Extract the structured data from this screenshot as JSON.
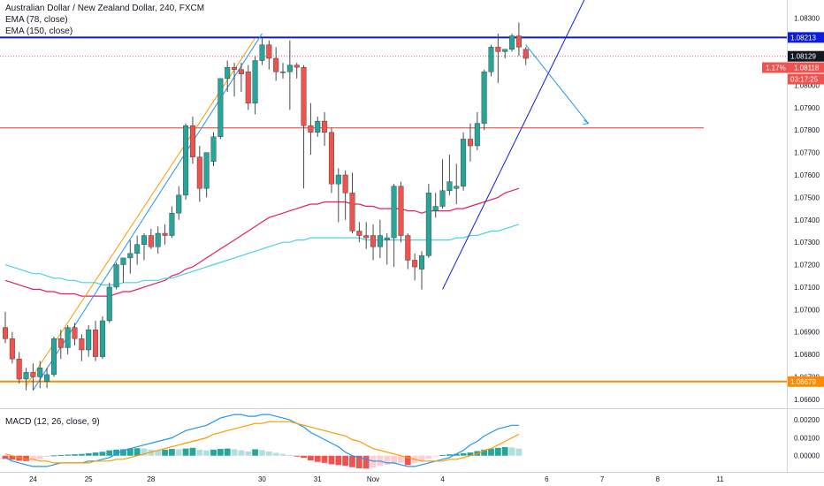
{
  "legend": {
    "title": "Australian Dollar / New Zealand Dollar, 240, FXCM",
    "ema1": "EMA (78, close)",
    "ema2": "EMA (150, close)",
    "macd": "MACD (12, 26, close, 9)"
  },
  "tags": {
    "resistance": "1.08213",
    "last_close": "1.08129",
    "change": "1.17%",
    "price": "1.08118",
    "countdown": "03:17:25",
    "support": "1.06679"
  },
  "colors": {
    "up": "#26a69a",
    "down": "#ef5350",
    "ema78": "#e91e63",
    "ema150": "#4dd0e1",
    "blue_level": "#0d1ddb",
    "orange_level": "#ff8c00",
    "red_level": "#e53935",
    "macd_line": "#2196f3",
    "signal_line": "#ff9800"
  },
  "chart_data": {
    "type": "candlestick",
    "symbol": "AUDNZD",
    "timeframe": "240",
    "y_ticks": [
      1.066,
      1.067,
      1.068,
      1.069,
      1.07,
      1.071,
      1.072,
      1.073,
      1.074,
      1.075,
      1.076,
      1.077,
      1.078,
      1.079,
      1.08,
      1.083
    ],
    "ylim": [
      1.0656,
      1.0838
    ],
    "x_ticks": [
      {
        "label": "24",
        "bar": 4
      },
      {
        "label": "25",
        "bar": 12
      },
      {
        "label": "28",
        "bar": 21
      },
      {
        "label": "30",
        "bar": 37
      },
      {
        "label": "31",
        "bar": 45
      },
      {
        "label": "Nov",
        "bar": 53
      },
      {
        "label": "4",
        "bar": 63
      },
      {
        "label": "6",
        "bar": 78
      },
      {
        "label": "7",
        "bar": 86
      },
      {
        "label": "8",
        "bar": 94
      },
      {
        "label": "11",
        "bar": 103
      }
    ],
    "candles": [
      [
        1.0692,
        1.0699,
        1.0685,
        1.0687
      ],
      [
        1.0687,
        1.069,
        1.0676,
        1.0678
      ],
      [
        1.0678,
        1.0681,
        1.0667,
        1.0669
      ],
      [
        1.0669,
        1.0674,
        1.0664,
        1.0672
      ],
      [
        1.0672,
        1.0676,
        1.0664,
        1.067
      ],
      [
        1.067,
        1.0677,
        1.0665,
        1.0674
      ],
      [
        1.0668,
        1.0674,
        1.0665,
        1.0671
      ],
      [
        1.0671,
        1.0688,
        1.067,
        1.0687
      ],
      [
        1.0687,
        1.0691,
        1.0678,
        1.0683
      ],
      [
        1.0683,
        1.0693,
        1.068,
        1.0692
      ],
      [
        1.0692,
        1.0694,
        1.0684,
        1.0687
      ],
      [
        1.0687,
        1.0689,
        1.0677,
        1.0682
      ],
      [
        1.0682,
        1.0693,
        1.0679,
        1.0691
      ],
      [
        1.0691,
        1.0695,
        1.0677,
        1.0679
      ],
      [
        1.0679,
        1.0697,
        1.0678,
        1.0695
      ],
      [
        1.0695,
        1.0712,
        1.0694,
        1.071
      ],
      [
        1.071,
        1.0721,
        1.0709,
        1.072
      ],
      [
        1.072,
        1.0723,
        1.0712,
        1.0723
      ],
      [
        1.0723,
        1.0731,
        1.0716,
        1.0725
      ],
      [
        1.0725,
        1.0733,
        1.072,
        1.0729
      ],
      [
        1.0729,
        1.0734,
        1.0722,
        1.0733
      ],
      [
        1.0733,
        1.0736,
        1.0727,
        1.0728
      ],
      [
        1.0728,
        1.0737,
        1.0725,
        1.0734
      ],
      [
        1.0734,
        1.0738,
        1.0729,
        1.0733
      ],
      [
        1.0733,
        1.0746,
        1.0732,
        1.0743
      ],
      [
        1.0743,
        1.0755,
        1.074,
        1.0751
      ],
      [
        1.0751,
        1.0783,
        1.0749,
        1.0782
      ],
      [
        1.0782,
        1.0786,
        1.0765,
        1.0768
      ],
      [
        1.0768,
        1.0773,
        1.0748,
        1.0754
      ],
      [
        1.0754,
        1.077,
        1.075,
        1.077
      ],
      [
        1.0766,
        1.0779,
        1.0764,
        1.0777
      ],
      [
        1.0777,
        1.0802,
        1.0776,
        1.0803
      ],
      [
        1.0803,
        1.0811,
        1.0797,
        1.0808
      ],
      [
        1.0808,
        1.081,
        1.0795,
        1.0807
      ],
      [
        1.0807,
        1.081,
        1.0797,
        1.0805
      ],
      [
        1.0806,
        1.0809,
        1.0789,
        1.0792
      ],
      [
        1.0792,
        1.0813,
        1.0787,
        1.0811
      ],
      [
        1.0811,
        1.0821,
        1.0809,
        1.0818
      ],
      [
        1.0818,
        1.082,
        1.0807,
        1.0812
      ],
      [
        1.0812,
        1.0817,
        1.0802,
        1.0806
      ],
      [
        1.0806,
        1.081,
        1.0803,
        1.0806
      ],
      [
        1.0806,
        1.082,
        1.0789,
        1.0809
      ],
      [
        1.0809,
        1.081,
        1.0803,
        1.0808
      ],
      [
        1.0808,
        1.0809,
        1.0754,
        1.0782
      ],
      [
        1.0782,
        1.0792,
        1.0769,
        1.0779
      ],
      [
        1.0779,
        1.0786,
        1.0777,
        1.0784
      ],
      [
        1.0784,
        1.0788,
        1.0773,
        1.0779
      ],
      [
        1.0779,
        1.0781,
        1.0752,
        1.0756
      ],
      [
        1.0756,
        1.0763,
        1.0739,
        1.076
      ],
      [
        1.076,
        1.0762,
        1.074,
        1.0752
      ],
      [
        1.0752,
        1.0761,
        1.0734,
        1.0735
      ],
      [
        1.0735,
        1.0739,
        1.073,
        1.0733
      ],
      [
        1.0733,
        1.0739,
        1.0727,
        1.0732
      ],
      [
        1.0733,
        1.0738,
        1.0722,
        1.0728
      ],
      [
        1.0728,
        1.074,
        1.0723,
        1.0733
      ],
      [
        1.0731,
        1.0734,
        1.072,
        1.0732
      ],
      [
        1.0732,
        1.0756,
        1.0719,
        1.0755
      ],
      [
        1.0755,
        1.0757,
        1.073,
        1.0733
      ],
      [
        1.0733,
        1.0734,
        1.0718,
        1.0722
      ],
      [
        1.0722,
        1.0725,
        1.0713,
        1.0719
      ],
      [
        1.0718,
        1.0726,
        1.0709,
        1.0724
      ],
      [
        1.0724,
        1.0756,
        1.0723,
        1.0752
      ],
      [
        1.0744,
        1.0752,
        1.0741,
        1.0746
      ],
      [
        1.0746,
        1.0767,
        1.0745,
        1.0753
      ],
      [
        1.0753,
        1.0769,
        1.0751,
        1.0757
      ],
      [
        1.0754,
        1.0765,
        1.0747,
        1.0755
      ],
      [
        1.0755,
        1.0779,
        1.0753,
        1.0776
      ],
      [
        1.0776,
        1.0783,
        1.0766,
        1.0773
      ],
      [
        1.0773,
        1.0788,
        1.0771,
        1.0783
      ],
      [
        1.0783,
        1.0807,
        1.078,
        1.0806
      ],
      [
        1.0806,
        1.0818,
        1.0804,
        1.0817
      ],
      [
        1.0817,
        1.0823,
        1.0801,
        1.0815
      ],
      [
        1.0815,
        1.0816,
        1.0812,
        1.0816
      ],
      [
        1.0816,
        1.0823,
        1.0815,
        1.0822
      ],
      [
        1.0822,
        1.0828,
        1.0813,
        1.0817
      ],
      [
        1.0816,
        1.0817,
        1.0809,
        1.0812
      ]
    ],
    "ema78": [
      1.0713,
      1.0712,
      1.0711,
      1.071,
      1.0709,
      1.0709,
      1.0708,
      1.0708,
      1.0707,
      1.0707,
      1.0707,
      1.0706,
      1.0706,
      1.0706,
      1.0706,
      1.0706,
      1.0707,
      1.0708,
      1.0708,
      1.0709,
      1.071,
      1.0711,
      1.0712,
      1.0713,
      1.0715,
      1.0716,
      1.0718,
      1.0719,
      1.0721,
      1.0723,
      1.0725,
      1.0727,
      1.0729,
      1.0731,
      1.0733,
      1.0735,
      1.0737,
      1.0739,
      1.0741,
      1.0742,
      1.0743,
      1.0744,
      1.0745,
      1.0746,
      1.0747,
      1.0747,
      1.0748,
      1.0748,
      1.0748,
      1.0748,
      1.0747,
      1.0747,
      1.0746,
      1.0746,
      1.0745,
      1.0745,
      1.0745,
      1.0745,
      1.0744,
      1.0744,
      1.0743,
      1.0744,
      1.0744,
      1.0744,
      1.0744,
      1.0745,
      1.0745,
      1.0746,
      1.0747,
      1.0748,
      1.0749,
      1.075,
      1.0752,
      1.0753,
      1.0754
    ],
    "ema150": [
      1.072,
      1.0719,
      1.0718,
      1.0717,
      1.0716,
      1.0716,
      1.0715,
      1.0714,
      1.0714,
      1.0713,
      1.0713,
      1.0712,
      1.0712,
      1.0712,
      1.0711,
      1.0711,
      1.0711,
      1.0712,
      1.0712,
      1.0712,
      1.0713,
      1.0713,
      1.0713,
      1.0714,
      1.0714,
      1.0715,
      1.0716,
      1.0717,
      1.0718,
      1.0719,
      1.072,
      1.0721,
      1.0722,
      1.0723,
      1.0724,
      1.0725,
      1.0726,
      1.0727,
      1.0728,
      1.0729,
      1.073,
      1.073,
      1.0731,
      1.0731,
      1.0732,
      1.0732,
      1.0732,
      1.0732,
      1.0732,
      1.0732,
      1.0732,
      1.0732,
      1.0731,
      1.0731,
      1.0731,
      1.0731,
      1.0731,
      1.0731,
      1.0731,
      1.0731,
      1.0731,
      1.0731,
      1.0731,
      1.0731,
      1.0731,
      1.0732,
      1.0732,
      1.0733,
      1.0733,
      1.0734,
      1.0735,
      1.0735,
      1.0736,
      1.0737,
      1.0738
    ],
    "levels": [
      {
        "name": "resistance",
        "price": 1.08213
      },
      {
        "name": "support",
        "price": 1.06679
      },
      {
        "name": "target",
        "price": 1.0781
      },
      {
        "name": "last_close",
        "price": 1.08129
      }
    ],
    "trendlines": [
      {
        "from": [
          3,
          1.0666
        ],
        "to": [
          36,
          1.0821
        ]
      },
      {
        "from": [
          4,
          1.0664
        ],
        "to": [
          37,
          1.0823
        ]
      },
      {
        "from": [
          63,
          1.0709
        ],
        "to": [
          85,
          1.0848
        ]
      }
    ],
    "projection": {
      "from": [
        75,
        1.0818
      ],
      "to": [
        84,
        1.0783
      ]
    },
    "macd": {
      "y_ticks": [
        0.0,
        0.001,
        0.002
      ],
      "ylim": [
        -0.0009,
        0.0026
      ],
      "histogram": [
        -0.00018,
        -0.00022,
        -0.00028,
        -0.0003,
        -0.00024,
        -0.00018,
        -6e-05,
        2e-05,
        4e-05,
        6e-05,
        8e-05,
        0.0001,
        0.00014,
        0.00018,
        0.00022,
        0.0003,
        0.00034,
        0.00036,
        0.0004,
        0.00042,
        0.0004,
        0.00034,
        0.0003,
        0.00034,
        0.00038,
        0.00036,
        0.0004,
        0.00044,
        0.00034,
        0.0003,
        0.00034,
        0.00038,
        0.0004,
        0.00036,
        0.0003,
        0.00024,
        0.00036,
        0.00032,
        0.00024,
        0.00016,
        0.0001,
        4e-05,
        -4e-05,
        -0.00012,
        -0.00026,
        -0.00034,
        -0.0004,
        -0.00048,
        -0.00052,
        -0.00056,
        -0.00064,
        -0.0007,
        -0.00072,
        -0.00066,
        -0.00056,
        -0.0005,
        -0.00044,
        -0.0004,
        -0.00052,
        -0.0004,
        -0.0003,
        -0.00016,
        -4e-05,
        4e-05,
        8e-05,
        0.0001,
        0.00014,
        0.00018,
        0.00026,
        0.00034,
        0.0004,
        0.00044,
        0.00048,
        0.00046,
        0.0004
      ],
      "macd_line": [
        -0.0001,
        -0.0003,
        -0.0004,
        -0.0005,
        -0.0006,
        -0.0006,
        -0.0006,
        -0.0005,
        -0.0004,
        -0.0004,
        -0.0004,
        -0.0004,
        -0.0003,
        -0.0003,
        -0.0002,
        -0.0001,
        0.0001,
        0.0003,
        0.0004,
        0.0005,
        0.0006,
        0.0007,
        0.0008,
        0.0009,
        0.001,
        0.0012,
        0.0014,
        0.0015,
        0.0016,
        0.0017,
        0.0019,
        0.0021,
        0.0022,
        0.0023,
        0.0023,
        0.0022,
        0.0022,
        0.0023,
        0.0023,
        0.0022,
        0.0021,
        0.002,
        0.0018,
        0.0016,
        0.0013,
        0.0011,
        0.0009,
        0.0007,
        0.0005,
        0.0002,
        0.0,
        -0.0001,
        -0.0002,
        -0.0003,
        -0.0003,
        -0.0004,
        -0.0004,
        -0.0005,
        -0.0006,
        -0.0006,
        -0.0005,
        -0.0004,
        -0.0003,
        -0.0002,
        -0.0001,
        0.0001,
        0.0003,
        0.0006,
        0.0008,
        0.0011,
        0.0013,
        0.0015,
        0.0016,
        0.0017,
        0.0017
      ],
      "signal_line": [
        0.0001,
        0.0,
        -0.0001,
        -0.0002,
        -0.0002,
        -0.0003,
        -0.0003,
        -0.0004,
        -0.0004,
        -0.0004,
        -0.0004,
        -0.0004,
        -0.0004,
        -0.0003,
        -0.0003,
        -0.0003,
        -0.0002,
        -0.0002,
        -0.0001,
        0.0,
        0.0001,
        0.0002,
        0.0003,
        0.0004,
        0.0005,
        0.0006,
        0.0007,
        0.0008,
        0.0009,
        0.001,
        0.0012,
        0.0013,
        0.0014,
        0.0015,
        0.0016,
        0.0017,
        0.0018,
        0.0018,
        0.0019,
        0.0019,
        0.0019,
        0.0019,
        0.0018,
        0.0017,
        0.0016,
        0.0015,
        0.0014,
        0.0013,
        0.0012,
        0.0011,
        0.0009,
        0.0008,
        0.0006,
        0.0004,
        0.0003,
        0.0002,
        0.0001,
        0.0,
        -0.0001,
        -0.0002,
        -0.0003,
        -0.0003,
        -0.0003,
        -0.0003,
        -0.0002,
        -0.0002,
        -0.0001,
        0.0,
        0.0001,
        0.0003,
        0.0004,
        0.0006,
        0.0008,
        0.001,
        0.0012
      ]
    }
  }
}
